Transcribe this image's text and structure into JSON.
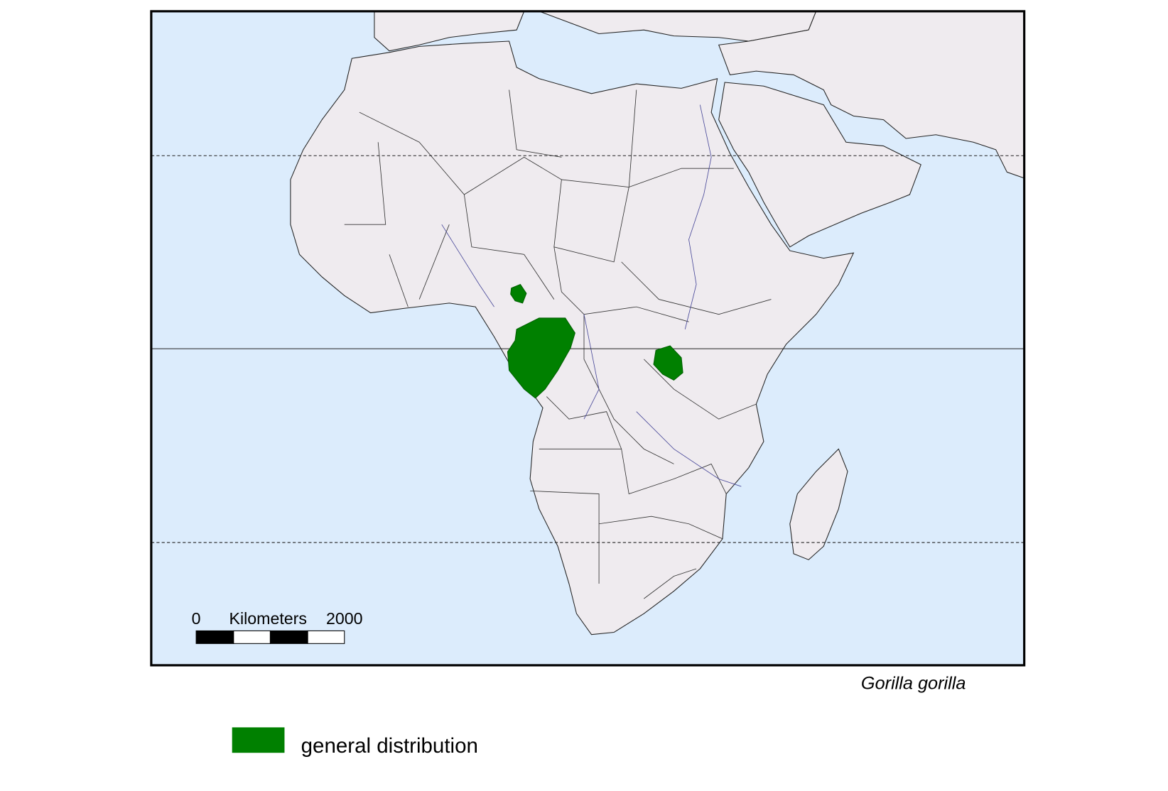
{
  "map": {
    "scale_bar": {
      "start": "0",
      "unit": "Kilometers",
      "end": "2000"
    },
    "species": "Gorilla gorilla",
    "legend": {
      "label": "general distribution"
    }
  }
}
